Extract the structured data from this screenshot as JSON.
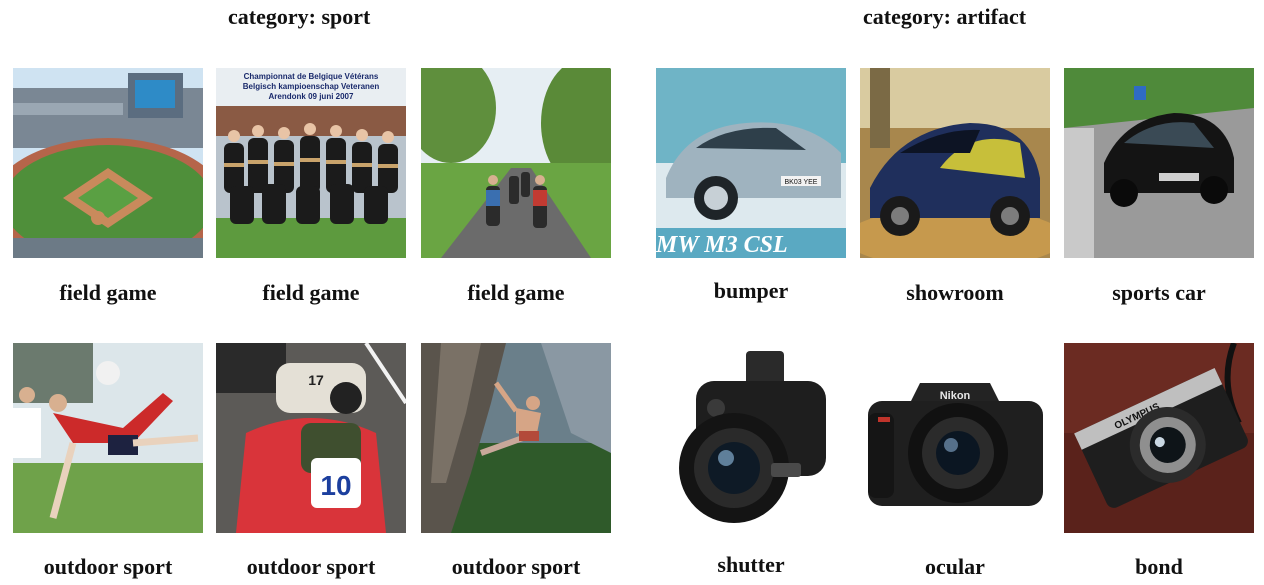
{
  "headings": {
    "sport": "category: sport",
    "artifact": "category: artifact"
  },
  "sport": {
    "row1": [
      "field game",
      "field game",
      "field game"
    ],
    "row2": [
      "outdoor sport",
      "outdoor sport",
      "outdoor sport"
    ],
    "soccer_banner": [
      "Championnat de Belgique Vétérans",
      "Belgisch kampioenschap Veteranen",
      "Arendonk 09 juni 2007"
    ],
    "kart_numbers": [
      "17",
      "10"
    ]
  },
  "artifact": {
    "row1": [
      "bumper",
      "showroom",
      "sports car"
    ],
    "row2": [
      "shutter",
      "ocular",
      "bond"
    ],
    "bmw_banner": "MW M3 CSL",
    "plate": "BK03 YEE",
    "brands": [
      "Nikon",
      "OLYMPUS"
    ]
  },
  "colors": {
    "grass": "#4f8f3a",
    "sky": "#cfe3f2",
    "text": "#111111"
  }
}
